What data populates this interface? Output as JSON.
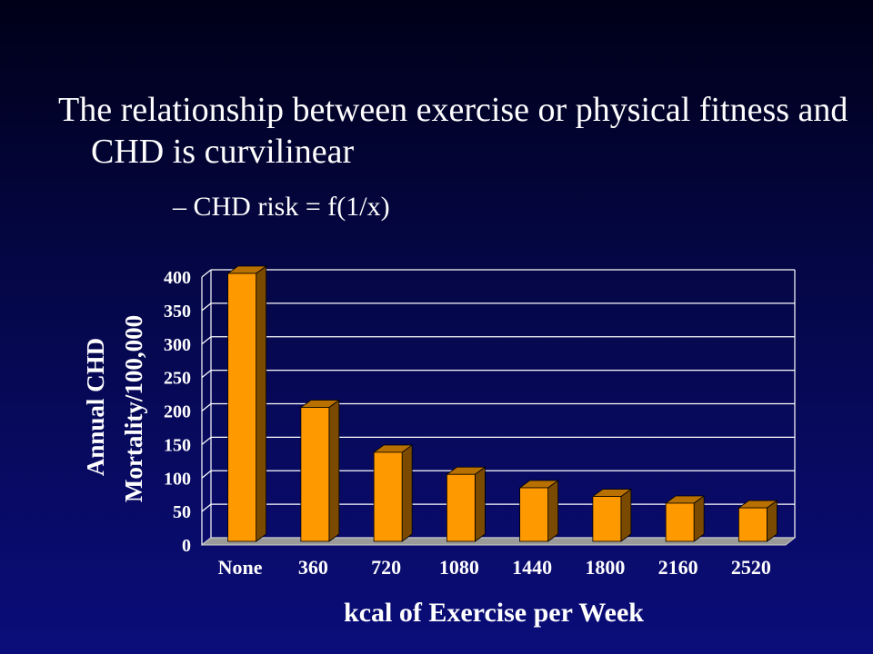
{
  "slide": {
    "title": "The relationship between exercise or physical fitness and CHD is curvilinear",
    "subbullet": "– CHD risk = f(1/x)"
  },
  "colors": {
    "background": "#05074a",
    "bar_front": "#ff9900",
    "bar_side": "#7a4a00",
    "bar_top": "#b87000",
    "floor": "#9a9a9a",
    "gridline": "#ffffff",
    "text": "#ffffff"
  },
  "chart_data": {
    "type": "bar",
    "style": "3d",
    "categories": [
      "None",
      "360",
      "720",
      "1080",
      "1440",
      "1800",
      "2160",
      "2520"
    ],
    "values": [
      400,
      200,
      133,
      100,
      80,
      67,
      57,
      50
    ],
    "xlabel": "kcal of Exercise per Week",
    "ylabel_lines": [
      "Annual CHD",
      "Mortality/100,000"
    ],
    "ylim": [
      0,
      400
    ],
    "yticks": [
      0,
      50,
      100,
      150,
      200,
      250,
      300,
      350,
      400
    ],
    "grid": true,
    "legend": "none"
  }
}
